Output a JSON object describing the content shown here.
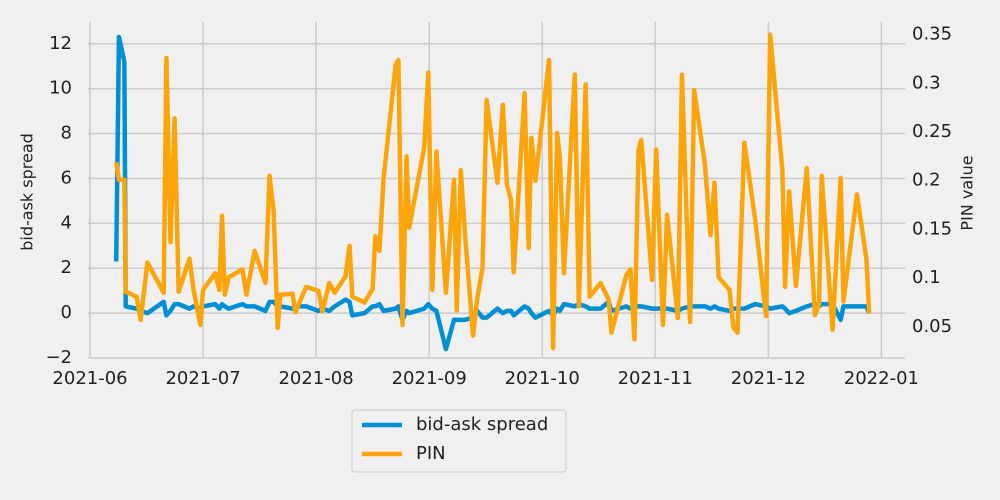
{
  "chart_data": {
    "type": "line",
    "x": [
      2021.436,
      2021.438,
      2021.442,
      2021.443,
      2021.451,
      2021.454,
      2021.459,
      2021.471,
      2021.473,
      2021.476,
      2021.479,
      2021.482,
      2021.49,
      2021.493,
      2021.498,
      2021.5,
      2021.509,
      2021.512,
      2021.514,
      2021.516,
      2021.519,
      2021.529,
      2021.532,
      2021.538,
      2021.546,
      2021.549,
      2021.552,
      2021.555,
      2021.557,
      2021.566,
      2021.568,
      2021.576,
      2021.585,
      2021.588,
      2021.593,
      2021.597,
      2021.605,
      2021.608,
      2021.61,
      2021.619,
      2021.625,
      2021.627,
      2021.63,
      2021.633,
      2021.642,
      2021.644,
      2021.647,
      2021.65,
      2021.652,
      2021.663,
      2021.666,
      2021.669,
      2021.672,
      2021.679,
      2021.685,
      2021.687,
      2021.69,
      2021.693,
      2021.699,
      2021.702,
      2021.706,
      2021.709,
      2021.717,
      2021.721,
      2021.724,
      2021.727,
      2021.729,
      2021.737,
      2021.74,
      2021.742,
      2021.745,
      2021.755,
      2021.758,
      2021.761,
      2021.763,
      2021.766,
      2021.774,
      2021.777,
      2021.782,
      2021.785,
      2021.793,
      2021.799,
      2021.801,
      2021.812,
      2021.815,
      2021.818,
      2021.821,
      2021.823,
      2021.831,
      2021.834,
      2021.839,
      2021.842,
      2021.85,
      2021.853,
      2021.859,
      2021.862,
      2021.87,
      2021.874,
      2021.877,
      2021.88,
      2021.888,
      2021.891,
      2021.894,
      2021.899,
      2021.907,
      2021.915,
      2021.918,
      2021.927,
      2021.929,
      2021.932,
      2021.937,
      2021.945,
      2021.951,
      2021.954,
      2021.956,
      2021.964,
      2021.97,
      2021.972,
      2021.982,
      2021.989,
      2021.991
    ],
    "series": [
      {
        "name": "bid-ask spread",
        "color": "#008fd5",
        "axis": "y",
        "values": [
          2.3,
          12.3,
          11.2,
          0.3,
          0.2,
          0.1,
          0.0,
          0.5,
          -0.1,
          0.1,
          0.4,
          0.4,
          0.2,
          0.3,
          0.2,
          0.3,
          0.4,
          0.2,
          0.4,
          0.3,
          0.2,
          0.4,
          0.3,
          0.3,
          0.1,
          0.5,
          0.5,
          0.3,
          0.3,
          0.2,
          0.3,
          0.3,
          0.1,
          0.2,
          0.1,
          0.3,
          0.6,
          0.5,
          -0.1,
          0.0,
          0.3,
          0.3,
          0.4,
          0.1,
          0.2,
          0.3,
          -0.3,
          0.1,
          0.0,
          0.2,
          0.4,
          0.2,
          0.1,
          -1.6,
          -0.3,
          -0.3,
          -0.3,
          -0.3,
          -0.2,
          0.1,
          -0.2,
          -0.2,
          0.2,
          0.0,
          0.1,
          0.1,
          -0.1,
          0.3,
          0.2,
          0.0,
          -0.2,
          0.1,
          -0.1,
          0.2,
          0.1,
          0.4,
          0.3,
          0.4,
          0.3,
          0.2,
          0.2,
          0.5,
          0.1,
          0.3,
          0.2,
          0.3,
          0.3,
          0.3,
          0.2,
          0.2,
          0.2,
          0.2,
          0.1,
          0.2,
          0.3,
          0.3,
          0.3,
          0.2,
          0.3,
          0.2,
          0.1,
          0.2,
          0.2,
          0.2,
          0.4,
          0.3,
          0.2,
          0.3,
          0.2,
          0.0,
          0.1,
          0.3,
          0.4,
          0.3,
          0.4,
          0.4,
          -0.3,
          0.3,
          0.3,
          0.3,
          0.0
        ]
      },
      {
        "name": "PIN",
        "color": "#fca50a",
        "axis": "y2",
        "values": [
          0.219,
          0.201,
          0.201,
          0.086,
          0.081,
          0.057,
          0.116,
          0.085,
          0.326,
          0.137,
          0.264,
          0.086,
          0.12,
          0.088,
          0.052,
          0.088,
          0.105,
          0.088,
          0.164,
          0.083,
          0.101,
          0.109,
          0.083,
          0.128,
          0.095,
          0.205,
          0.17,
          0.049,
          0.083,
          0.084,
          0.065,
          0.091,
          0.087,
          0.066,
          0.095,
          0.085,
          0.102,
          0.133,
          0.081,
          0.075,
          0.089,
          0.143,
          0.128,
          0.201,
          0.319,
          0.324,
          0.052,
          0.225,
          0.152,
          0.234,
          0.311,
          0.088,
          0.23,
          0.085,
          0.201,
          0.067,
          0.211,
          0.147,
          0.041,
          0.078,
          0.111,
          0.283,
          0.198,
          0.278,
          0.196,
          0.18,
          0.106,
          0.29,
          0.131,
          0.244,
          0.2,
          0.324,
          0.028,
          0.249,
          0.224,
          0.105,
          0.309,
          0.071,
          0.299,
          0.081,
          0.095,
          0.078,
          0.044,
          0.103,
          0.109,
          0.037,
          0.232,
          0.242,
          0.098,
          0.232,
          0.052,
          0.165,
          0.059,
          0.309,
          0.055,
          0.293,
          0.216,
          0.144,
          0.198,
          0.101,
          0.088,
          0.049,
          0.044,
          0.239,
          0.16,
          0.061,
          0.35,
          0.211,
          0.091,
          0.189,
          0.092,
          0.213,
          0.062,
          0.073,
          0.205,
          0.047,
          0.203,
          0.076,
          0.186,
          0.119,
          0.064
        ]
      }
    ],
    "xlim": [
      2021.4152,
      2022.0174
    ],
    "xticks": [
      {
        "value": 2021.4167,
        "label": "2021-06"
      },
      {
        "value": 2021.5,
        "label": "2021-07"
      },
      {
        "value": 2021.5833,
        "label": "2021-08"
      },
      {
        "value": 2021.6667,
        "label": "2021-09"
      },
      {
        "value": 2021.75,
        "label": "2021-10"
      },
      {
        "value": 2021.8333,
        "label": "2021-11"
      },
      {
        "value": 2021.9167,
        "label": "2021-12"
      },
      {
        "value": 2022.0,
        "label": "2022-01"
      }
    ],
    "ylim": [
      -2.0,
      12.97
    ],
    "yticks": [
      {
        "value": -2,
        "label": "−2"
      },
      0,
      2,
      4,
      6,
      8,
      10,
      12
    ],
    "y2lim": [
      0.018,
      0.363
    ],
    "y2ticks": [
      0.05,
      0.1,
      0.15,
      0.2,
      0.25,
      0.3,
      0.35
    ],
    "y2ticks_labels_note_free": null,
    "ylabel": "bid-ask spread",
    "y2label": "PIN value",
    "grid": true,
    "legend": "bottom"
  }
}
